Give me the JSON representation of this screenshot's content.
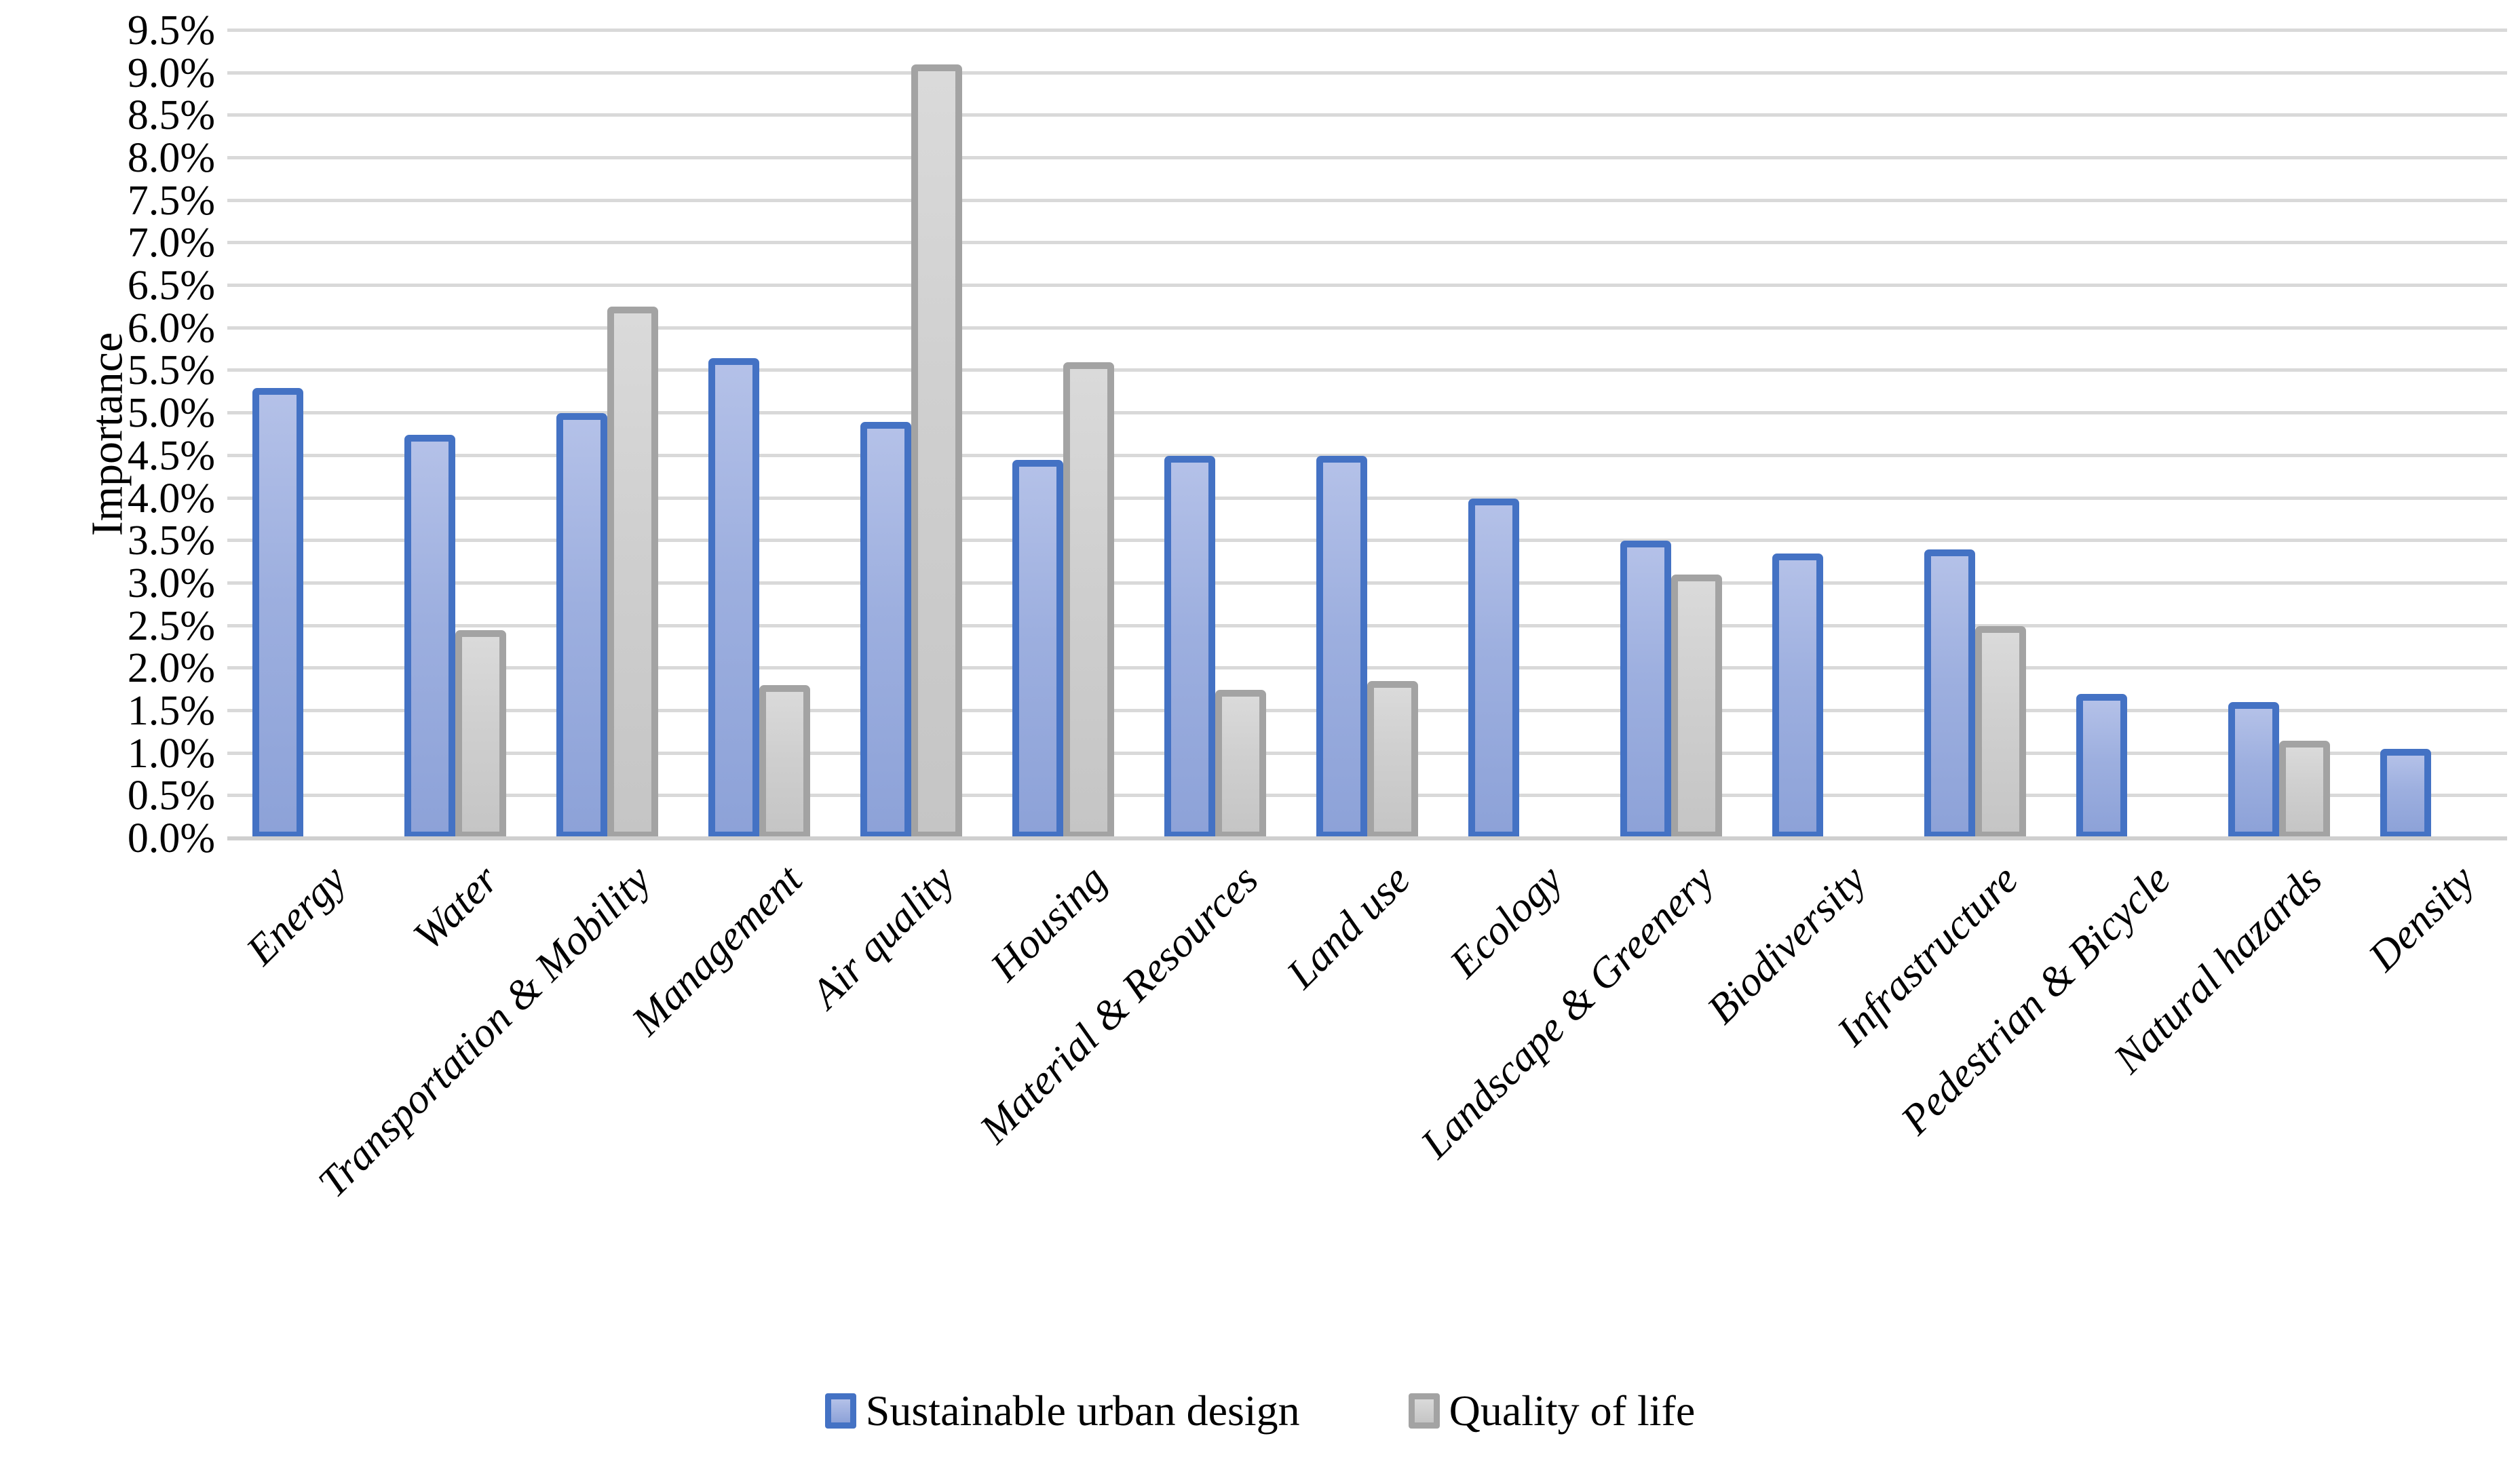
{
  "chart_data": {
    "type": "bar",
    "title": "",
    "xlabel": "",
    "ylabel": "Importance",
    "ylim": [
      0,
      9.5
    ],
    "ytick_step": 0.5,
    "ytick_labels": [
      "0.0%",
      "0.5%",
      "1.0%",
      "1.5%",
      "2.0%",
      "2.5%",
      "3.0%",
      "3.5%",
      "4.0%",
      "4.5%",
      "5.0%",
      "5.5%",
      "6.0%",
      "6.5%",
      "7.0%",
      "7.5%",
      "8.0%",
      "8.5%",
      "9.0%",
      "9.5%"
    ],
    "grid": true,
    "legend_position": "bottom",
    "categories": [
      "Energy",
      "Water",
      "Transportation & Mobility",
      "Management",
      "Air quality",
      "Housing",
      "Material & Resources",
      "Land use",
      "Ecology",
      "Landscape & Greenery",
      "Biodiversity",
      "Infrastructure",
      "Pedestrian & Bicycle",
      "Natural hazards",
      "Density"
    ],
    "series": [
      {
        "name": "Sustainable urban design",
        "border_color": "#4472c4",
        "fill_top": "#b4c1e8",
        "fill_bottom": "#8da2d8",
        "values": [
          5.3,
          4.75,
          5.0,
          5.65,
          4.9,
          4.45,
          4.5,
          4.5,
          4.0,
          3.5,
          3.35,
          3.4,
          1.7,
          1.6,
          1.05
        ]
      },
      {
        "name": "Quality of life",
        "border_color": "#a3a3a3",
        "fill_top": "#dadada",
        "fill_bottom": "#c5c5c5",
        "values": [
          null,
          2.45,
          6.25,
          1.8,
          9.1,
          5.6,
          1.75,
          1.85,
          null,
          3.1,
          null,
          2.5,
          null,
          1.15,
          null
        ]
      }
    ],
    "gridline_color": "#d9d9d9",
    "axis_line_color": "#cfcfcf",
    "text_color": "#000000"
  }
}
